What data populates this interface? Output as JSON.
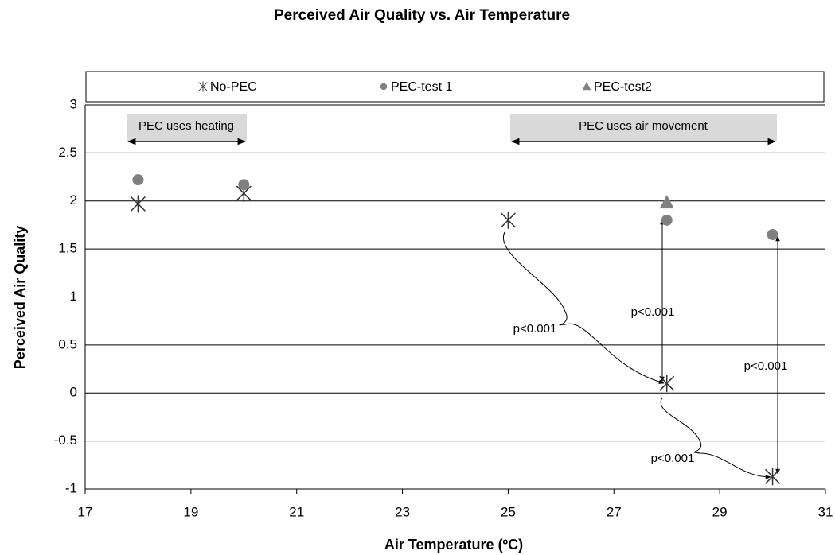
{
  "chart_data": {
    "type": "scatter",
    "title": "Perceived Air Quality vs.  Air Temperature",
    "xlabel": "Air Temperature (ºC)",
    "ylabel": "Perceived Air Quality",
    "xlim": [
      17,
      31
    ],
    "xticks": [
      17,
      19,
      21,
      23,
      25,
      27,
      29,
      31
    ],
    "ylim": [
      -1,
      3
    ],
    "yticks": [
      3,
      2.5,
      2,
      1.5,
      1,
      0.5,
      0,
      -0.5,
      -1
    ],
    "grid": true,
    "legend": "top",
    "series": [
      {
        "name": "No-PEC",
        "color": "#333333",
        "marker": "star",
        "x": [
          18,
          20,
          25,
          28,
          30
        ],
        "values": [
          1.97,
          2.08,
          1.8,
          0.1,
          -0.87
        ]
      },
      {
        "name": "PEC-test 1",
        "color": "#808080",
        "marker": "circle",
        "x": [
          18,
          20,
          28,
          30
        ],
        "values": [
          2.22,
          2.17,
          1.8,
          1.65
        ]
      },
      {
        "name": "PEC-test2",
        "color": "#808080",
        "marker": "triangle",
        "x": [
          28
        ],
        "values": [
          1.98
        ]
      }
    ],
    "annotations": [
      "PEC uses heating",
      "PEC uses air movement",
      "p<0.001",
      "p<0.001",
      "p<0.001",
      "p<0.001"
    ]
  }
}
